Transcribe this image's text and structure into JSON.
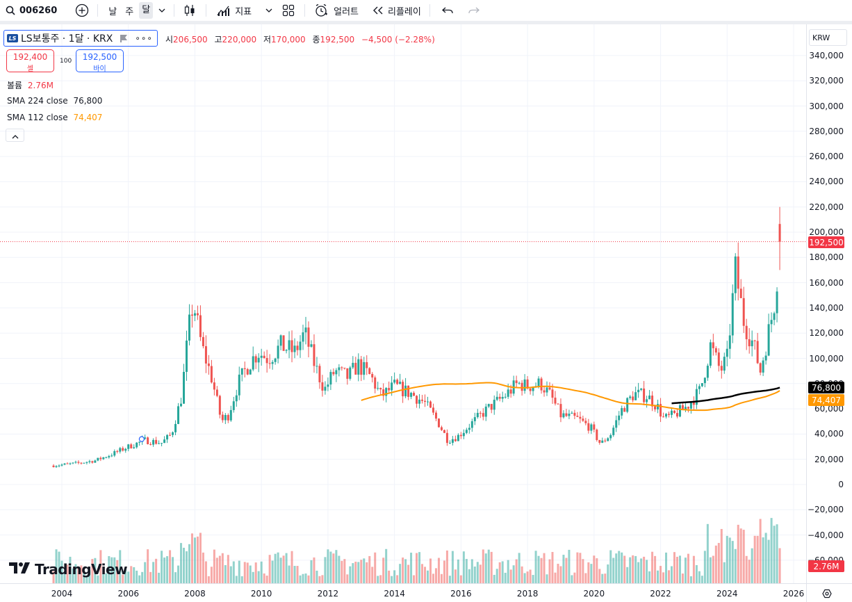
{
  "toolbar": {
    "symbol": "006260",
    "intervals": [
      "날",
      "주",
      "달"
    ],
    "active_interval": "달",
    "indicators_label": "지표",
    "alert_label": "얼러트",
    "replay_label": "리플레이",
    "icons": [
      "search-icon",
      "add-symbol-icon",
      "chevron-down-icon",
      "candles-icon",
      "indicators-icon",
      "layout-icon",
      "alert-icon",
      "replay-icon",
      "undo-icon",
      "redo-icon"
    ]
  },
  "legend": {
    "symbol_title": "LS보통주 · 1달 · KRX",
    "ohlc": {
      "o_label": "시",
      "o": "206,500",
      "h_label": "고",
      "h": "220,000",
      "l_label": "저",
      "l": "170,000",
      "c_label": "종",
      "c": "192,500",
      "change": "−4,500 (−2.28%)"
    },
    "sell_price": "192,400",
    "sell_label": "셀",
    "spread": "100",
    "buy_price": "192,500",
    "buy_label": "바이",
    "volume_label": "볼륨",
    "volume_value": "2.76M",
    "sma224_label": "SMA 224 close",
    "sma224_value": "76,800",
    "sma112_label": "SMA 112 close",
    "sma112_value": "74,407"
  },
  "price_axis": {
    "currency": "KRW",
    "labels": [
      "340,000",
      "320,000",
      "300,000",
      "280,000",
      "260,000",
      "240,000",
      "220,000",
      "200,000",
      "180,000",
      "160,000",
      "140,000",
      "120,000",
      "100,000",
      "80,000",
      "60,000",
      "40,000",
      "20,000",
      "0",
      "−20,000",
      "−40,000",
      "−60,000"
    ],
    "tag_last": "192,500",
    "tag_sma224": "76,800",
    "tag_sma112": "74,407",
    "tag_volume": "2.76M"
  },
  "time_axis": {
    "labels": [
      "2004",
      "2006",
      "2008",
      "2010",
      "2012",
      "2014",
      "2016",
      "2018",
      "2020",
      "2022",
      "2024",
      "2026"
    ]
  },
  "watermark": "TradingView",
  "colors": {
    "up": "#26a69a",
    "down": "#ef5350",
    "sma224": "#000000",
    "sma112": "#ff9800",
    "last": "#f23645",
    "accent": "#2962ff"
  },
  "chart_data": {
    "type": "candlestick",
    "interval": "1M",
    "y_range": [
      -60000,
      340000
    ],
    "x_range": [
      2003.5,
      2026.5
    ],
    "anchors": [
      [
        2003.75,
        15000
      ],
      [
        2004.5,
        17000
      ],
      [
        2005.0,
        19000
      ],
      [
        2005.5,
        24000
      ],
      [
        2006.0,
        30000
      ],
      [
        2006.5,
        35000
      ],
      [
        2007.0,
        33000
      ],
      [
        2007.3,
        40000
      ],
      [
        2007.6,
        70000
      ],
      [
        2007.8,
        120000
      ],
      [
        2007.95,
        145000
      ],
      [
        2008.2,
        110000
      ],
      [
        2008.5,
        85000
      ],
      [
        2008.8,
        50000
      ],
      [
        2009.0,
        55000
      ],
      [
        2009.3,
        80000
      ],
      [
        2009.6,
        95000
      ],
      [
        2009.9,
        105000
      ],
      [
        2010.2,
        100000
      ],
      [
        2010.6,
        110000
      ],
      [
        2011.0,
        105000
      ],
      [
        2011.3,
        120000
      ],
      [
        2011.6,
        95000
      ],
      [
        2011.9,
        75000
      ],
      [
        2012.2,
        90000
      ],
      [
        2012.6,
        85000
      ],
      [
        2012.9,
        95000
      ],
      [
        2013.3,
        85000
      ],
      [
        2013.6,
        70000
      ],
      [
        2014.0,
        78000
      ],
      [
        2014.5,
        72000
      ],
      [
        2014.9,
        65000
      ],
      [
        2015.3,
        50000
      ],
      [
        2015.6,
        35000
      ],
      [
        2015.9,
        38000
      ],
      [
        2016.3,
        48000
      ],
      [
        2016.8,
        60000
      ],
      [
        2017.3,
        70000
      ],
      [
        2017.7,
        80000
      ],
      [
        2018.0,
        78000
      ],
      [
        2018.4,
        80000
      ],
      [
        2018.7,
        70000
      ],
      [
        2019.0,
        55000
      ],
      [
        2019.5,
        52000
      ],
      [
        2019.9,
        45000
      ],
      [
        2020.2,
        32000
      ],
      [
        2020.5,
        40000
      ],
      [
        2020.8,
        58000
      ],
      [
        2021.2,
        72000
      ],
      [
        2021.6,
        70000
      ],
      [
        2021.9,
        62000
      ],
      [
        2022.1,
        52000
      ],
      [
        2022.4,
        55000
      ],
      [
        2022.8,
        62000
      ],
      [
        2023.2,
        75000
      ],
      [
        2023.5,
        110000
      ],
      [
        2023.8,
        90000
      ],
      [
        2024.0,
        100000
      ],
      [
        2024.25,
        170000
      ],
      [
        2024.5,
        130000
      ],
      [
        2024.8,
        110000
      ],
      [
        2025.0,
        90000
      ],
      [
        2025.2,
        115000
      ],
      [
        2025.4,
        140000
      ],
      [
        2025.5,
        165000
      ],
      [
        2025.58,
        192500
      ]
    ],
    "last_candle": {
      "open": 206500,
      "high": 220000,
      "low": 170000,
      "close": 192500
    },
    "sma224_last": 76800,
    "sma112_last": 74407,
    "volume_last": "2.76M"
  }
}
